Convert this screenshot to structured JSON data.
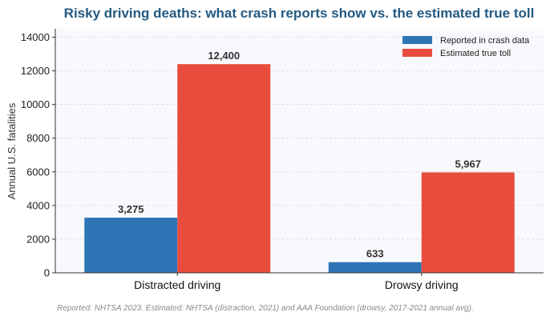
{
  "chart_data": {
    "type": "bar",
    "title": "Risky driving deaths: what crash reports show vs. the estimated true toll",
    "xlabel": "",
    "ylabel": "Annual U.S. fatalities",
    "categories": [
      "Distracted driving",
      "Drowsy driving"
    ],
    "series": [
      {
        "name": "Reported in crash data",
        "values": [
          3275,
          633
        ],
        "labels": [
          "3,275",
          "633"
        ],
        "color": "#2e75b6"
      },
      {
        "name": "Estimated true toll",
        "values": [
          12400,
          5967
        ],
        "labels": [
          "12,400",
          "5,967"
        ],
        "color": "#e84c3d"
      }
    ],
    "ylim": [
      0,
      14500
    ],
    "yticks": [
      0,
      2000,
      4000,
      6000,
      8000,
      10000,
      12000,
      14000
    ],
    "ytick_labels": [
      "0",
      "2000",
      "4000",
      "6000",
      "8000",
      "10000",
      "12000",
      "14000"
    ],
    "grid": true,
    "legend_position": "top-right",
    "source_note": "Reported: NHTSA 2023. Estimated: NHTSA (distraction, 2021) and AAA Foundation (drowsy, 2017-2021 annual avg)."
  }
}
